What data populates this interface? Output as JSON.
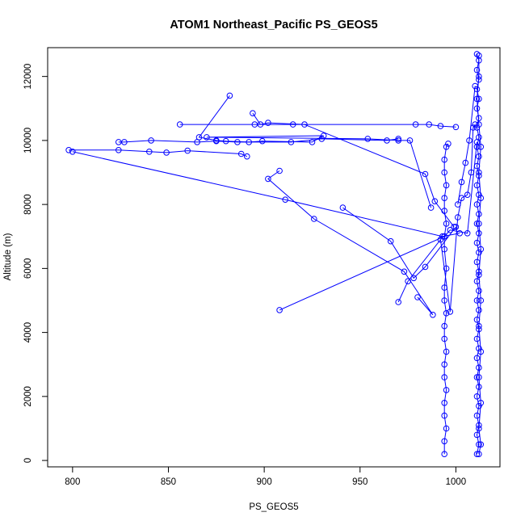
{
  "chart_data": {
    "type": "scatter",
    "title": "ATOM1 Northeast_Pacific PS_GEOS5",
    "xlabel": "PS_GEOS5",
    "ylabel": "Altitude (m)",
    "xlim": [
      787,
      1023
    ],
    "ylim": [
      -200,
      12900
    ],
    "x_ticks": [
      800,
      850,
      900,
      950,
      1000
    ],
    "x_tick_labels": [
      "800",
      "850",
      "900",
      "950",
      "1000"
    ],
    "y_ticks": [
      0,
      2000,
      4000,
      6000,
      8000,
      10000,
      12000
    ],
    "y_tick_labels": [
      "0",
      "2000",
      "4000",
      "6000",
      "8000",
      "10000",
      "12000"
    ],
    "grid": false,
    "marker": "open-circle",
    "connected": true,
    "series_color": "#0000ff",
    "series": [
      {
        "points": [
          [
            1011,
            200
          ],
          [
            1012,
            500
          ],
          [
            1011,
            800
          ],
          [
            1012,
            1100
          ],
          [
            1011,
            1400
          ],
          [
            1012,
            1700
          ],
          [
            1011,
            2000
          ],
          [
            1012,
            2300
          ],
          [
            1011,
            2600
          ],
          [
            1012,
            2900
          ],
          [
            1011,
            3200
          ],
          [
            1012,
            3500
          ],
          [
            1011,
            3800
          ],
          [
            1012,
            4100
          ],
          [
            1011,
            4400
          ],
          [
            1012,
            4700
          ],
          [
            1011,
            5000
          ],
          [
            1012,
            5300
          ],
          [
            1011,
            5600
          ],
          [
            1012,
            5900
          ],
          [
            1011,
            6200
          ],
          [
            1012,
            6500
          ],
          [
            1011,
            6800
          ],
          [
            1012,
            7100
          ],
          [
            1011,
            7400
          ],
          [
            1012,
            7700
          ],
          [
            1011,
            8000
          ],
          [
            1012,
            8300
          ],
          [
            1011,
            8600
          ],
          [
            1012,
            8900
          ],
          [
            1011,
            9200
          ],
          [
            1012,
            9500
          ],
          [
            1011,
            9800
          ],
          [
            1012,
            10100
          ],
          [
            1011,
            10400
          ],
          [
            1012,
            10700
          ],
          [
            1011,
            11000
          ],
          [
            1012,
            11300
          ],
          [
            1011,
            11600
          ],
          [
            1012,
            11900
          ],
          [
            1011,
            12200
          ],
          [
            1012,
            12500
          ],
          [
            1011,
            12700
          ]
        ]
      },
      {
        "points": [
          [
            1012,
            12650
          ],
          [
            1012,
            12000
          ],
          [
            1011,
            11300
          ],
          [
            1012,
            10500
          ],
          [
            1013,
            9800
          ],
          [
            1012,
            9000
          ],
          [
            1013,
            8200
          ],
          [
            1012,
            7400
          ],
          [
            1013,
            6600
          ],
          [
            1012,
            5800
          ],
          [
            1013,
            5000
          ],
          [
            1012,
            4200
          ],
          [
            1013,
            3400
          ],
          [
            1012,
            2600
          ],
          [
            1013,
            1800
          ],
          [
            1012,
            1000
          ],
          [
            1013,
            500
          ],
          [
            1012,
            200
          ]
        ]
      },
      {
        "points": [
          [
            994,
            200
          ],
          [
            994,
            600
          ],
          [
            995,
            1000
          ],
          [
            994,
            1400
          ],
          [
            994,
            1800
          ],
          [
            995,
            2200
          ],
          [
            994,
            2600
          ],
          [
            994,
            3000
          ],
          [
            995,
            3400
          ],
          [
            994,
            3800
          ],
          [
            994,
            4200
          ],
          [
            995,
            4600
          ],
          [
            994,
            5000
          ],
          [
            994,
            5400
          ],
          [
            995,
            6000
          ],
          [
            994,
            6600
          ],
          [
            994,
            7000
          ],
          [
            995,
            7400
          ],
          [
            994,
            7800
          ],
          [
            994,
            8200
          ],
          [
            995,
            8600
          ],
          [
            994,
            9000
          ],
          [
            994,
            9400
          ],
          [
            995,
            9800
          ],
          [
            996,
            9900
          ]
        ]
      },
      {
        "points": [
          [
            882,
            11400
          ],
          [
            866,
            10100
          ],
          [
            875,
            10000
          ],
          [
            880,
            9980
          ],
          [
            892,
            9950
          ],
          [
            899,
            9980
          ],
          [
            925,
            9950
          ],
          [
            931,
            10150
          ],
          [
            870,
            10100
          ],
          [
            954,
            10050
          ],
          [
            970,
            10000
          ],
          [
            976,
            10000
          ],
          [
            987,
            7900
          ]
        ]
      },
      {
        "points": [
          [
            856,
            10500
          ],
          [
            895,
            10500
          ],
          [
            915,
            10500
          ],
          [
            979,
            10500
          ],
          [
            986,
            10500
          ],
          [
            992,
            10450
          ],
          [
            1000,
            10420
          ]
        ]
      },
      {
        "points": [
          [
            894,
            10850
          ],
          [
            898,
            10500
          ],
          [
            902,
            10550
          ],
          [
            921,
            10500
          ],
          [
            984,
            8950
          ],
          [
            989,
            8100
          ],
          [
            999,
            7300
          ]
        ]
      },
      {
        "points": [
          [
            824,
            9950
          ],
          [
            827,
            9950
          ],
          [
            841,
            10000
          ],
          [
            865,
            9950
          ],
          [
            875,
            9980
          ],
          [
            886,
            9950
          ],
          [
            914,
            9950
          ],
          [
            930,
            10050
          ],
          [
            964,
            10000
          ],
          [
            970,
            10050
          ]
        ]
      },
      {
        "points": [
          [
            798,
            9700
          ],
          [
            824,
            9700
          ],
          [
            840,
            9650
          ],
          [
            849,
            9620
          ],
          [
            860,
            9680
          ],
          [
            888,
            9580
          ],
          [
            891,
            9500
          ]
        ]
      },
      {
        "points": [
          [
            800,
            9650
          ],
          [
            911,
            8150
          ],
          [
            993,
            7000
          ],
          [
            1002,
            7100
          ]
        ]
      },
      {
        "points": [
          [
            908,
            9050
          ],
          [
            902,
            8800
          ],
          [
            926,
            7550
          ],
          [
            973,
            5900
          ],
          [
            988,
            4550
          ],
          [
            980,
            5100
          ]
        ]
      },
      {
        "points": [
          [
            941,
            7900
          ],
          [
            966,
            6850
          ],
          [
            978,
            5700
          ],
          [
            984,
            6050
          ],
          [
            1000,
            7300
          ]
        ]
      },
      {
        "points": [
          [
            908,
            4700
          ],
          [
            994,
            7000
          ],
          [
            997,
            7200
          ],
          [
            1006,
            7100
          ],
          [
            1011,
            9950
          ]
        ]
      },
      {
        "points": [
          [
            970,
            4950
          ],
          [
            975,
            5600
          ],
          [
            992,
            6900
          ],
          [
            997,
            4650
          ],
          [
            1001,
            7600
          ],
          [
            1003,
            8200
          ],
          [
            1006,
            8300
          ],
          [
            1008,
            9000
          ],
          [
            1009,
            10400
          ],
          [
            1010,
            10500
          ]
        ]
      },
      {
        "points": [
          [
            1001,
            8000
          ],
          [
            1003,
            8700
          ],
          [
            1005,
            9300
          ],
          [
            1007,
            10000
          ],
          [
            1010,
            11700
          ]
        ]
      }
    ]
  }
}
